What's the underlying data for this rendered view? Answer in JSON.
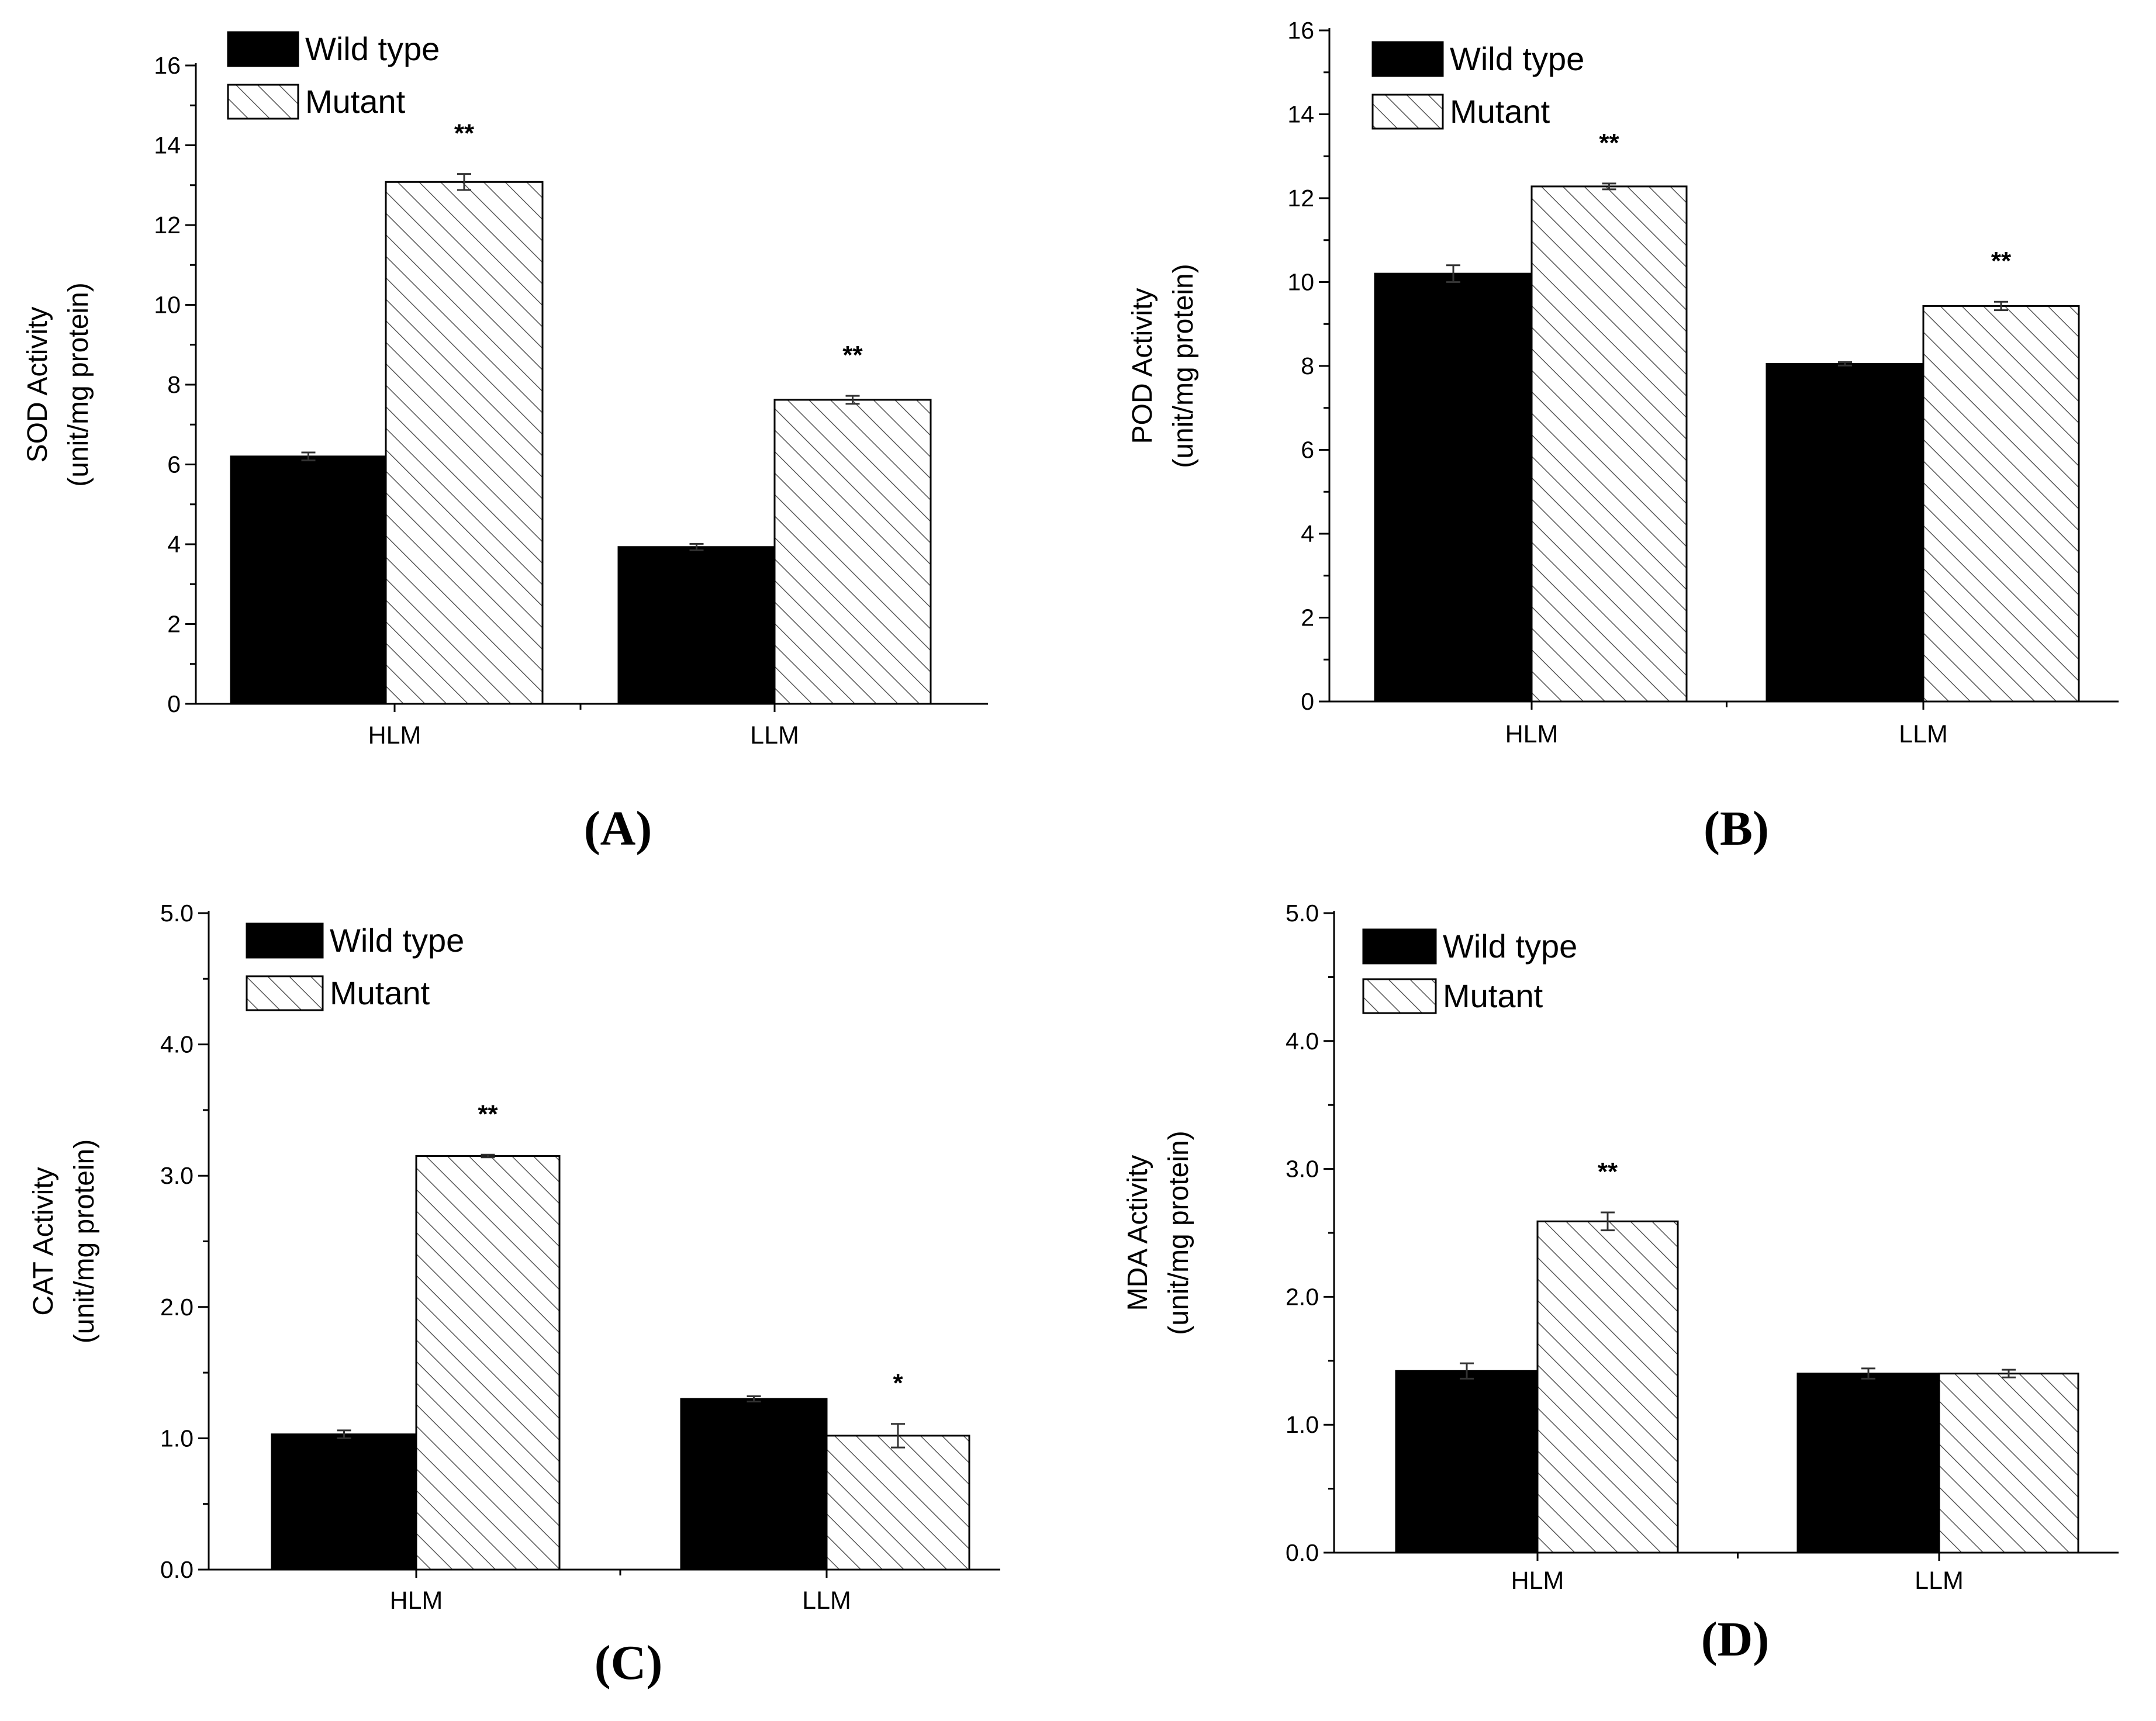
{
  "colors": {
    "wild_type": "#000000",
    "mutant_fill": "#ffffff",
    "hatch": "#555555",
    "axis": "#000000"
  },
  "chart_data": [
    {
      "type": "bar",
      "panel": "(A)",
      "ylabel_line1": "SOD Activity",
      "ylabel_line2": "(unit/mg protein)",
      "categories": [
        "HLM",
        "LLM"
      ],
      "ylim": [
        0,
        16
      ],
      "ticks": [
        0,
        2,
        4,
        6,
        8,
        10,
        12,
        14,
        16
      ],
      "tick_labels": [
        "0",
        "2",
        "4",
        "6",
        "8",
        "10",
        "12",
        "14",
        "16"
      ],
      "series": [
        {
          "name": "Wild type",
          "values": [
            6.2,
            3.93
          ],
          "errors": [
            0.1,
            0.08
          ]
        },
        {
          "name": "Mutant",
          "values": [
            13.08,
            7.62
          ],
          "errors": [
            0.2,
            0.1
          ]
        }
      ],
      "significance": [
        {
          "category": 0,
          "series": 1,
          "label": "**"
        },
        {
          "category": 1,
          "series": 1,
          "label": "**"
        }
      ]
    },
    {
      "type": "bar",
      "panel": "(B)",
      "ylabel_line1": "POD Activity",
      "ylabel_line2": "(unit/mg protein)",
      "categories": [
        "HLM",
        "LLM"
      ],
      "ylim": [
        0,
        16
      ],
      "ticks": [
        0,
        2,
        4,
        6,
        8,
        10,
        12,
        14,
        16
      ],
      "tick_labels": [
        "0",
        "2",
        "4",
        "6",
        "8",
        "10",
        "12",
        "14",
        "16"
      ],
      "series": [
        {
          "name": "Wild type",
          "values": [
            10.2,
            8.05
          ],
          "errors": [
            0.2,
            0.04
          ]
        },
        {
          "name": "Mutant",
          "values": [
            12.28,
            9.43
          ],
          "errors": [
            0.07,
            0.1
          ]
        }
      ],
      "significance": [
        {
          "category": 0,
          "series": 1,
          "label": "**"
        },
        {
          "category": 1,
          "series": 1,
          "label": "**"
        }
      ]
    },
    {
      "type": "bar",
      "panel": "(C)",
      "ylabel_line1": "CAT Activity",
      "ylabel_line2": "(unit/mg protein)",
      "categories": [
        "HLM",
        "LLM"
      ],
      "ylim": [
        0,
        5
      ],
      "ticks": [
        0,
        1,
        2,
        3,
        4,
        5
      ],
      "tick_labels": [
        "0.0",
        "1.0",
        "2.0",
        "3.0",
        "4.0",
        "5.0"
      ],
      "series": [
        {
          "name": "Wild type",
          "values": [
            1.03,
            1.3
          ],
          "errors": [
            0.03,
            0.02
          ]
        },
        {
          "name": "Mutant",
          "values": [
            3.15,
            1.02
          ],
          "errors": [
            0.01,
            0.09
          ]
        }
      ],
      "significance": [
        {
          "category": 0,
          "series": 1,
          "label": "**"
        },
        {
          "category": 1,
          "series": 1,
          "label": "*"
        }
      ]
    },
    {
      "type": "bar",
      "panel": "(D)",
      "ylabel_line1": "MDA Activity",
      "ylabel_line2": "(unit/mg protein)",
      "categories": [
        "HLM",
        "LLM"
      ],
      "ylim": [
        0,
        5
      ],
      "ticks": [
        0,
        1,
        2,
        3,
        4,
        5
      ],
      "tick_labels": [
        "0.0",
        "1.0",
        "2.0",
        "3.0",
        "4.0",
        "5.0"
      ],
      "series": [
        {
          "name": "Wild type",
          "values": [
            1.42,
            1.4
          ],
          "errors": [
            0.06,
            0.04
          ]
        },
        {
          "name": "Mutant",
          "values": [
            2.59,
            1.4
          ],
          "errors": [
            0.07,
            0.03
          ]
        }
      ],
      "significance": [
        {
          "category": 0,
          "series": 1,
          "label": "**"
        }
      ]
    }
  ]
}
